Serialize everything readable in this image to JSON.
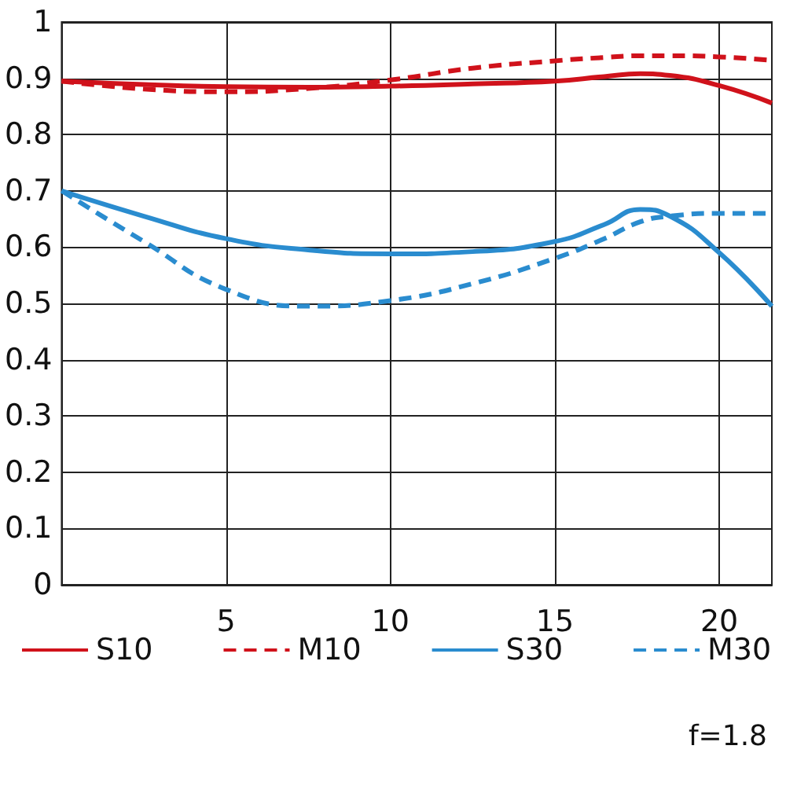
{
  "chart_data": {
    "type": "line",
    "x": [
      0,
      2.5,
      5,
      7.5,
      10,
      12.5,
      15,
      16.5,
      17.6,
      18.5,
      20,
      21.6
    ],
    "series": [
      {
        "name": "S10",
        "color": "#d0121b",
        "line_style": "solid",
        "values": [
          0.895,
          0.889,
          0.885,
          0.884,
          0.886,
          0.89,
          0.895,
          0.903,
          0.908,
          0.905,
          0.887,
          0.856
        ]
      },
      {
        "name": "M10",
        "color": "#d0121b",
        "line_style": "dashed",
        "values": [
          0.895,
          0.881,
          0.876,
          0.882,
          0.897,
          0.918,
          0.931,
          0.937,
          0.94,
          0.94,
          0.938,
          0.932
        ]
      },
      {
        "name": "S30",
        "color": "#2a8ccf",
        "line_style": "solid",
        "values": [
          0.7,
          0.655,
          0.615,
          0.595,
          0.588,
          0.592,
          0.61,
          0.64,
          0.667,
          0.655,
          0.59,
          0.495
        ]
      },
      {
        "name": "M30",
        "color": "#2a8ccf",
        "line_style": "dashed",
        "values": [
          0.7,
          0.61,
          0.525,
          0.495,
          0.505,
          0.535,
          0.58,
          0.615,
          0.645,
          0.655,
          0.66,
          0.66
        ]
      }
    ],
    "xlim": [
      0,
      21.6
    ],
    "xticks": [
      5,
      10,
      15,
      20
    ],
    "ylim": [
      0,
      1
    ],
    "yticks": [
      0,
      0.1,
      0.2,
      0.3,
      0.4,
      0.5,
      0.6,
      0.7,
      0.8,
      0.9,
      1
    ],
    "grid": true,
    "legend": "bottom",
    "marker": "none",
    "annotations": [
      "f=1.8"
    ]
  }
}
